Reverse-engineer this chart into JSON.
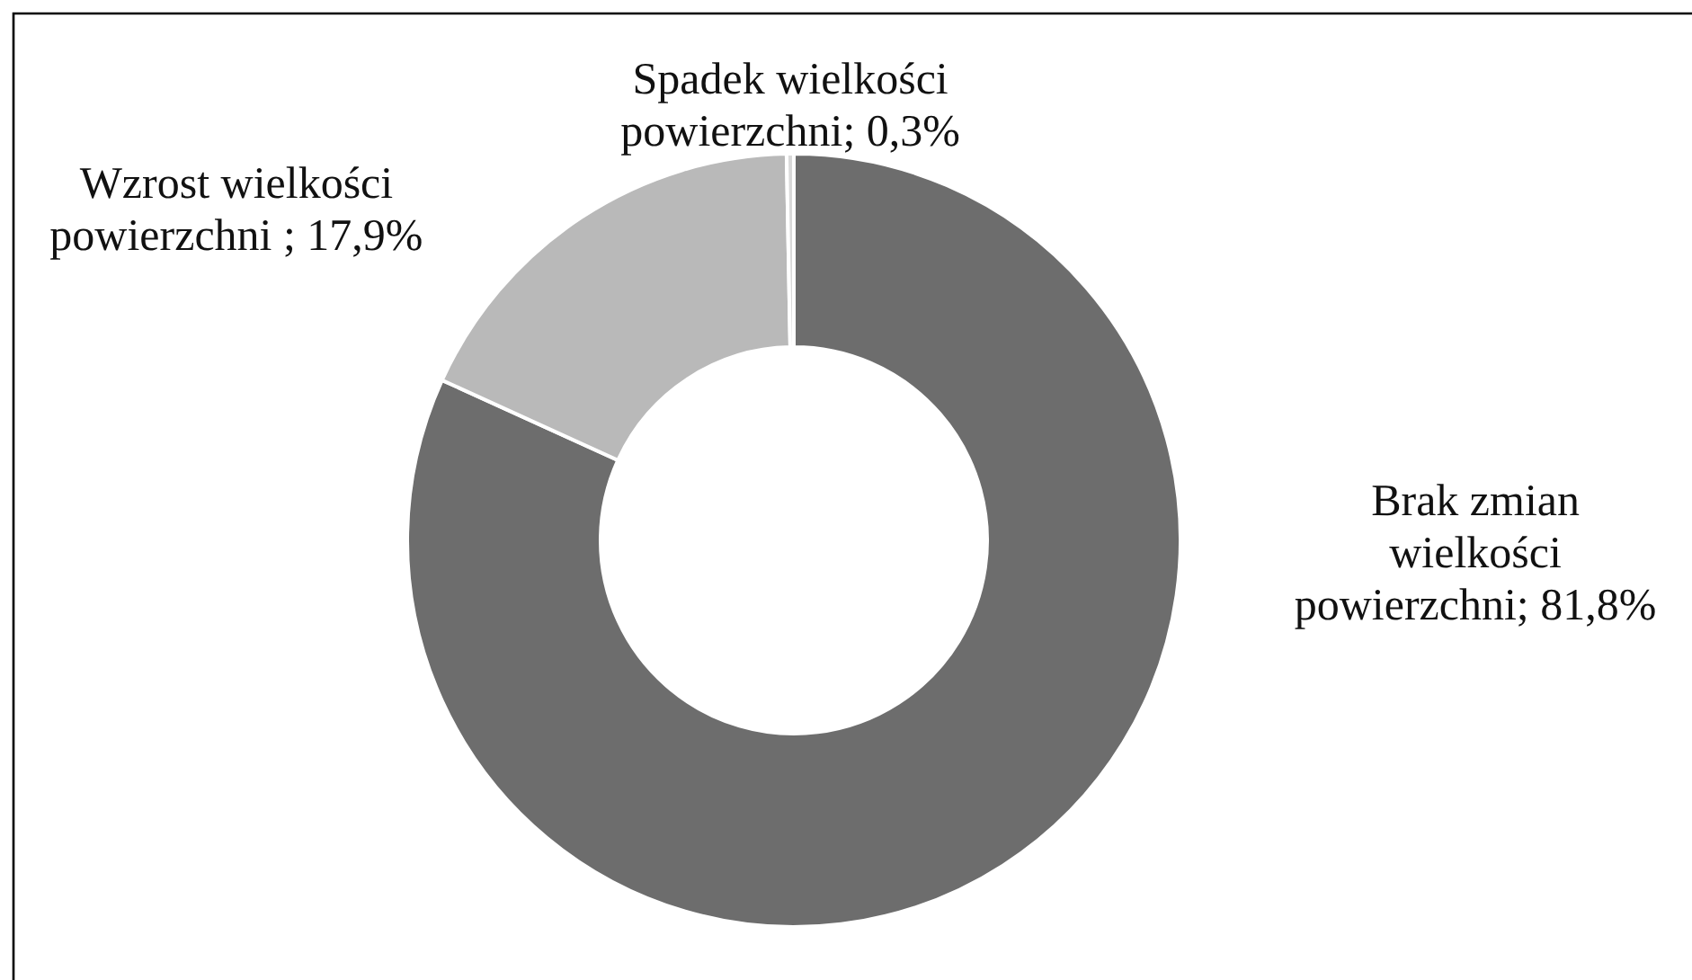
{
  "chart_data": {
    "type": "donut",
    "categories": [
      "Brak zmian wielkości powierzchni",
      "Wzrost wielkości powierzchni ",
      "Spadek wielkości powierzchni"
    ],
    "values": [
      81.8,
      17.9,
      0.3
    ],
    "colors": [
      "#6d6d6d",
      "#b9b9b9",
      "#d9d9d9"
    ],
    "value_labels": [
      "81,8%",
      "17,9%",
      "0,3%"
    ]
  }
}
